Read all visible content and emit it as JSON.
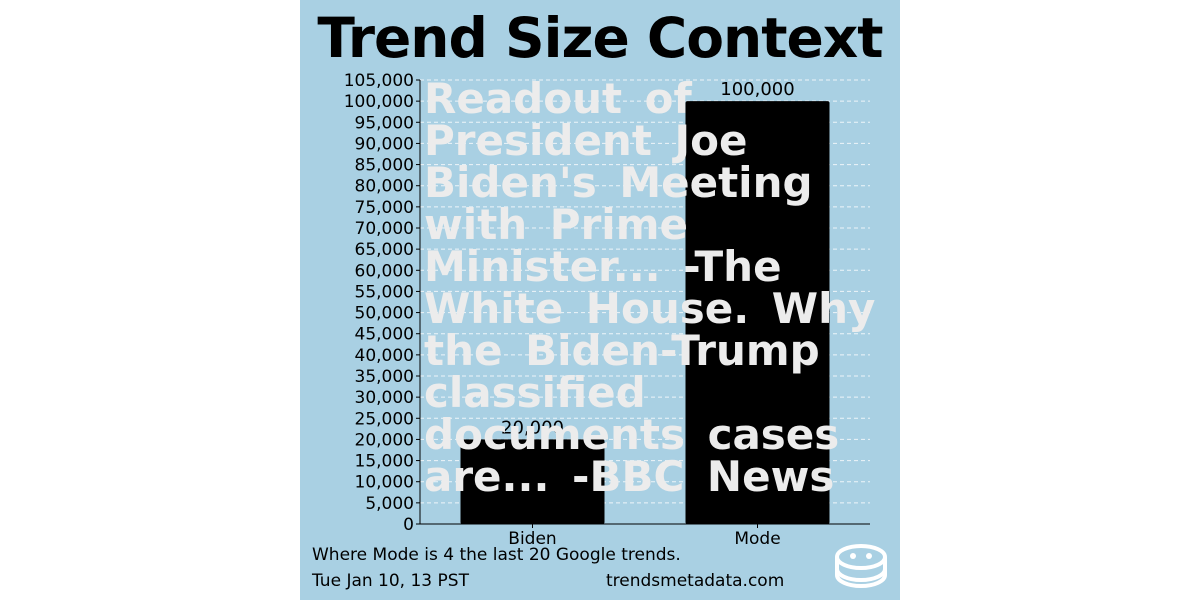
{
  "title": "Trend Size Context",
  "headline": "Readout of President Joe Biden's Meeting with Prime Minister... -The White House. Why the Biden-Trump classified documents cases are... -BBC News",
  "footnote": "Where Mode is 4 the last 20 Google trends.",
  "timestamp": "Tue Jan 10, 13 PST",
  "site": "trendsmetadata.com",
  "logo_icon": "database-icon",
  "colors": {
    "background": "#a9d0e3",
    "bar": "#000000",
    "headline": "#ececec",
    "grid": "#ffffff"
  },
  "chart_data": {
    "type": "bar",
    "categories": [
      "Biden",
      "Mode"
    ],
    "values": [
      20000,
      100000
    ],
    "value_labels": [
      "20,000",
      "100,000"
    ],
    "ylim": [
      0,
      105000
    ],
    "ytick_step": 5000,
    "grid": true,
    "xlabel": "",
    "ylabel": ""
  }
}
